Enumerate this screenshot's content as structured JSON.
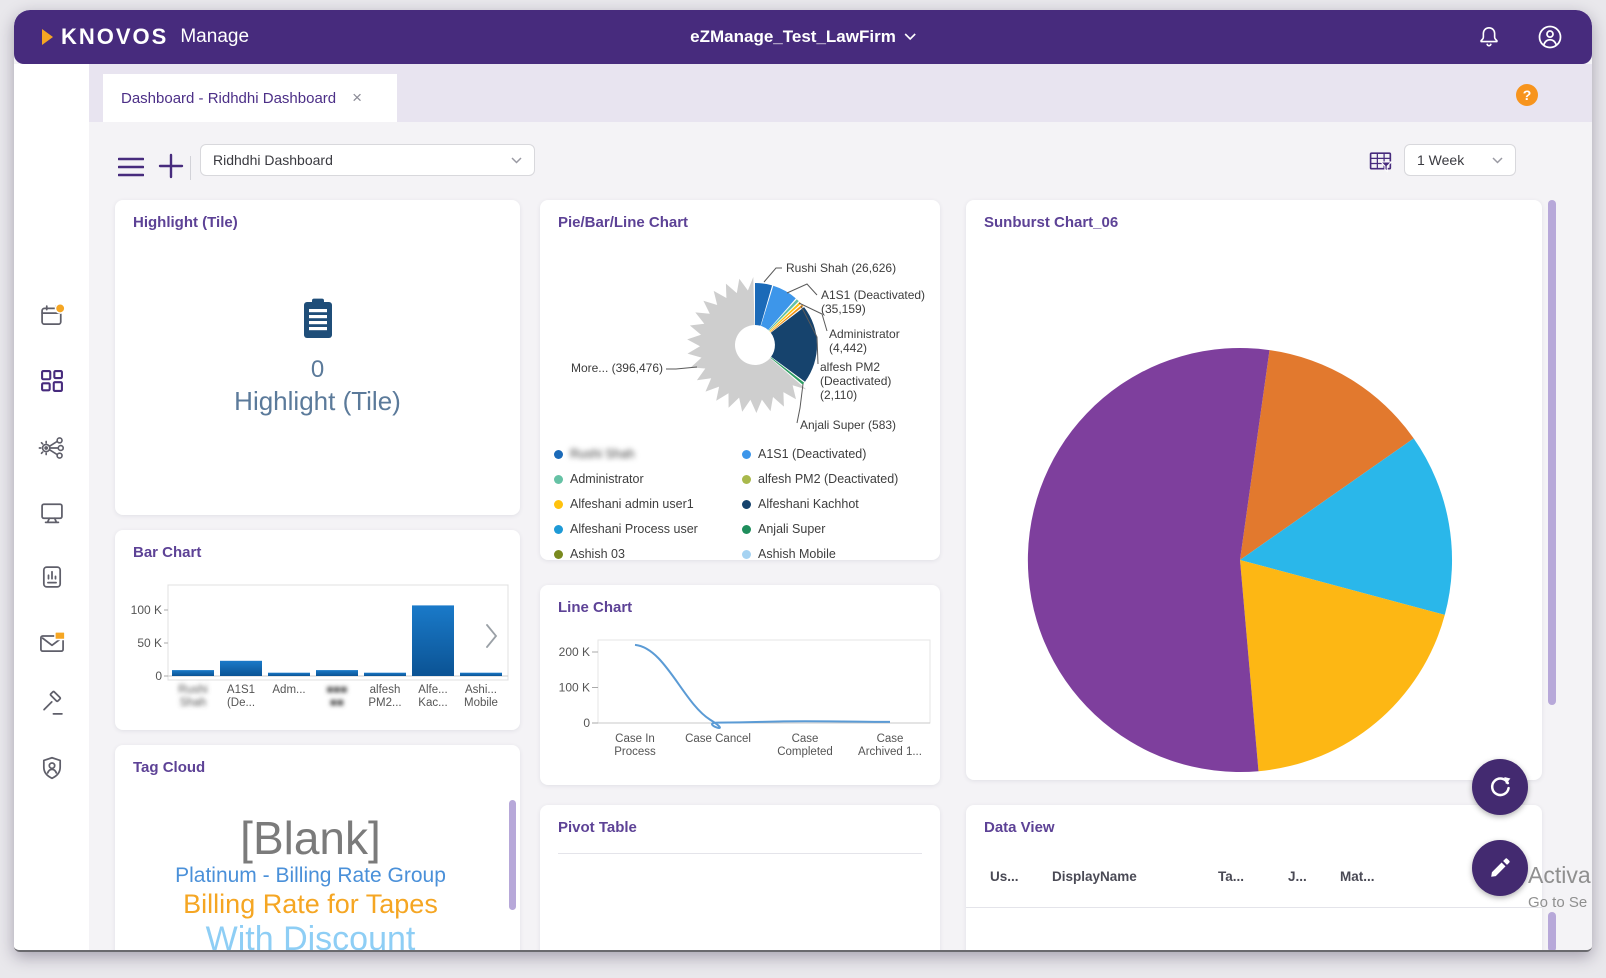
{
  "topbar": {
    "brand": "KNOVOS",
    "product": "Manage",
    "account": "eZManage_Test_LawFirm"
  },
  "tab": {
    "label": "Dashboard - Ridhdhi Dashboard",
    "close": "×"
  },
  "help": "?",
  "toolbar": {
    "dashboard_name": "Ridhdhi Dashboard",
    "period": "1 Week"
  },
  "sidebar": [
    {
      "name": "calendar",
      "badge": true
    },
    {
      "name": "dashboard",
      "active": true
    },
    {
      "name": "workflow"
    },
    {
      "name": "monitor"
    },
    {
      "name": "report"
    },
    {
      "name": "mail",
      "badge": true
    },
    {
      "name": "gavel"
    },
    {
      "name": "shield-user"
    }
  ],
  "tiles": {
    "highlight": {
      "title": "Highlight (Tile)",
      "count": "0",
      "caption": "Highlight (Tile)"
    },
    "tag_cloud": {
      "title": "Tag Cloud",
      "tags": [
        {
          "text": "[Blank]",
          "color": "#7b7b7b",
          "size": 46
        },
        {
          "text": "Platinum - Billing Rate Group",
          "color": "#4a90d9",
          "size": 21
        },
        {
          "text": "Billing Rate for Tapes",
          "color": "#f5a623",
          "size": 27
        },
        {
          "text": "With Discount",
          "color": "#8ecef5",
          "size": 34
        }
      ]
    },
    "pivot": {
      "title": "Pivot Table"
    },
    "data_view": {
      "title": "Data View",
      "columns": [
        "Us...",
        "DisplayName",
        "Ta...",
        "J...",
        "Mat..."
      ]
    }
  },
  "chart_data": [
    {
      "id": "pie-bar-line",
      "type": "pie",
      "donut": true,
      "title": "Pie/Bar/Line Chart",
      "slices": [
        {
          "label": "Rushi Shah",
          "value": 26626,
          "color": "#1b6ab8",
          "angle_deg": 16
        },
        {
          "label": "A1S1 (Deactivated)",
          "value": 35159,
          "color": "#3d96ea",
          "angle_deg": 24
        },
        {
          "label": "Administrator",
          "value": 4442,
          "color": "#66c2a5",
          "angle_deg": 2.5
        },
        {
          "label": "Alfeshani admin user1",
          "color": "#ffc20e",
          "angle_deg": 2
        },
        {
          "label": "alfesh PM2 (Deactivated)",
          "value": 2110,
          "color": "#f29111",
          "angle_deg": 1.8
        },
        {
          "label": "Alfeshani Kachhot",
          "color": "#16436d",
          "angle_deg": 74
        },
        {
          "label": "Anjali Super",
          "value": 583,
          "color": "#2f9e63",
          "angle_deg": 2.2
        },
        {
          "label": "More...",
          "value": 396476,
          "color": "#cecece",
          "angle_deg": 228,
          "jagged": true
        }
      ],
      "callouts": [
        {
          "lines": [
            "Rushi Shah (26,626)"
          ]
        },
        {
          "lines": [
            "A1S1 (Deactivated)",
            "(35,159)"
          ]
        },
        {
          "lines": [
            "Administrator",
            "(4,442)"
          ]
        },
        {
          "lines": [
            "alfesh PM2",
            "(Deactivated)",
            "(2,110)"
          ]
        },
        {
          "lines": [
            "Anjali Super (583)"
          ]
        },
        {
          "lines": [
            "More... (396,476)"
          ]
        }
      ],
      "legend": [
        {
          "label": "Rushi Shah",
          "color": "#1b6ab8",
          "redacted": true
        },
        {
          "label": "A1S1 (Deactivated)",
          "color": "#3d96ea"
        },
        {
          "label": "Administrator",
          "color": "#66c2a5"
        },
        {
          "label": "alfesh PM2 (Deactivated)",
          "color": "#a9b94c"
        },
        {
          "label": "Alfeshani admin user1",
          "color": "#ffc20e"
        },
        {
          "label": "Alfeshani Kachhot",
          "color": "#16436d"
        },
        {
          "label": "Alfeshani Process user",
          "color": "#1e9ad6"
        },
        {
          "label": "Anjali Super",
          "color": "#1f8e5c"
        },
        {
          "label": "Ashish 03",
          "color": "#7a8a1f"
        },
        {
          "label": "Ashish Mobile",
          "color": "#a6d3f2"
        }
      ]
    },
    {
      "id": "bar",
      "type": "bar",
      "title": "Bar Chart",
      "yticks": [
        "100 K",
        "50 K",
        "0"
      ],
      "ylim": [
        0,
        115000
      ],
      "categories": [
        {
          "lines": [
            "Rushi",
            "Shah"
          ],
          "redacted": true
        },
        {
          "lines": [
            "A1S1",
            "(De..."
          ]
        },
        {
          "lines": [
            "Adm..."
          ]
        },
        {
          "lines": [
            "■■■",
            "■■"
          ],
          "redacted": true
        },
        {
          "lines": [
            "alfesh",
            "PM2..."
          ]
        },
        {
          "lines": [
            "Alfe...",
            "Kac..."
          ]
        },
        {
          "lines": [
            "Ashi...",
            "Mobile"
          ]
        }
      ],
      "values": [
        9000,
        23000,
        5000,
        9000,
        5000,
        107000,
        5000
      ],
      "bar_color_top": "#1a7ac9",
      "bar_color_bottom": "#0b5394"
    },
    {
      "id": "line",
      "type": "line",
      "title": "Line Chart",
      "yticks": [
        "200 K",
        "100 K",
        "0"
      ],
      "categories": [
        {
          "lines": [
            "Case In",
            "Process"
          ]
        },
        {
          "lines": [
            "Case Cancel"
          ]
        },
        {
          "lines": [
            "Case",
            "Completed"
          ]
        },
        {
          "lines": [
            "Case",
            "Archived 1..."
          ]
        }
      ],
      "values": [
        220000,
        1000,
        5000,
        3000
      ],
      "color": "#5b9bd5"
    },
    {
      "id": "sunburst",
      "type": "pie",
      "title": "Sunburst Chart_06",
      "start_angle_deg": 8,
      "slices": [
        {
          "color": "#e2792e",
          "angle_deg": 47
        },
        {
          "color": "#2ab7ea",
          "angle_deg": 50
        },
        {
          "color": "#fdb714",
          "angle_deg": 70
        },
        {
          "color": "#7e3f9d",
          "angle_deg": 193
        }
      ]
    }
  ],
  "watermark": {
    "line1": "Activa",
    "line2": "Go to Se"
  },
  "colors": {
    "accent_purple": "#472b7d",
    "accent_orange": "#f5a623"
  }
}
